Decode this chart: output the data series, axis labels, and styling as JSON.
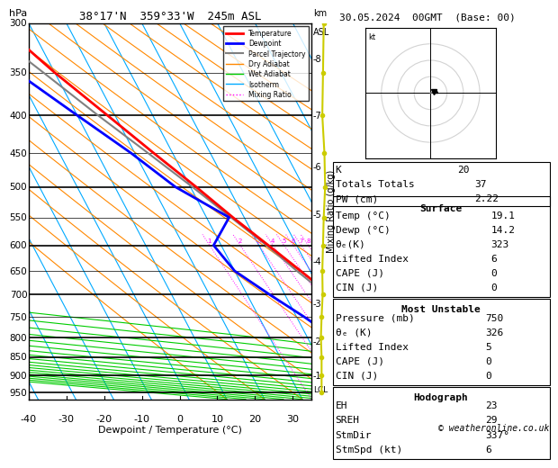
{
  "title_left": "38°17'N  359°33'W  245m ASL",
  "title_right": "30.05.2024  00GMT  (Base: 00)",
  "xlabel": "Dewpoint / Temperature (°C)",
  "temperature_profile": {
    "pressure": [
      950,
      900,
      850,
      800,
      750,
      700,
      650,
      600,
      550,
      500,
      450,
      400,
      350,
      300
    ],
    "temp": [
      19.1,
      16.5,
      13.5,
      9.5,
      6.0,
      2.0,
      -2.5,
      -7.5,
      -13.0,
      -18.5,
      -25.0,
      -32.0,
      -40.0,
      -48.0
    ]
  },
  "dewpoint_profile": {
    "pressure": [
      950,
      900,
      850,
      800,
      750,
      700,
      650,
      600,
      550,
      500,
      450,
      400,
      350,
      300
    ],
    "temp": [
      14.2,
      9.0,
      3.0,
      -3.0,
      -8.0,
      -14.0,
      -20.0,
      -22.0,
      -14.0,
      -24.0,
      -31.0,
      -40.0,
      -50.0,
      -58.0
    ]
  },
  "parcel_profile": {
    "pressure": [
      950,
      900,
      850,
      800,
      750,
      700,
      650,
      600,
      550,
      500,
      450,
      400,
      350,
      300
    ],
    "temp": [
      19.1,
      15.5,
      12.0,
      8.0,
      4.5,
      1.0,
      -3.5,
      -8.0,
      -13.5,
      -19.5,
      -26.5,
      -34.5,
      -43.0,
      -53.0
    ]
  },
  "lcl_pressure": 940,
  "colors": {
    "temperature": "#ff0000",
    "dewpoint": "#0000ff",
    "parcel": "#808080",
    "dry_adiabat": "#ff8800",
    "wet_adiabat": "#00cc00",
    "isotherm": "#00aaff",
    "mixing_ratio": "#ff00ff",
    "wind_profile": "#cccc00"
  },
  "legend_entries": [
    {
      "label": "Temperature",
      "color": "#ff0000",
      "lw": 2,
      "ls": "-"
    },
    {
      "label": "Dewpoint",
      "color": "#0000ff",
      "lw": 2,
      "ls": "-"
    },
    {
      "label": "Parcel Trajectory",
      "color": "#808080",
      "lw": 1.5,
      "ls": "-"
    },
    {
      "label": "Dry Adiabat",
      "color": "#ff8800",
      "lw": 1,
      "ls": "-"
    },
    {
      "label": "Wet Adiabat",
      "color": "#00cc00",
      "lw": 1,
      "ls": "-"
    },
    {
      "label": "Isotherm",
      "color": "#00aaff",
      "lw": 1,
      "ls": "-"
    },
    {
      "label": "Mixing Ratio",
      "color": "#ff00ff",
      "lw": 1,
      "ls": ":"
    }
  ],
  "stats": {
    "K": 20,
    "Totals_Totals": 37,
    "PW_cm": 2.22,
    "Surface": {
      "Temp_C": 19.1,
      "Dewp_C": 14.2,
      "theta_e_K": 323,
      "Lifted_Index": 6,
      "CAPE_J": 0,
      "CIN_J": 0
    },
    "Most_Unstable": {
      "Pressure_mb": 750,
      "theta_e_K": 326,
      "Lifted_Index": 5,
      "CAPE_J": 0,
      "CIN_J": 0
    },
    "Hodograph": {
      "EH": 23,
      "SREH": 29,
      "StmDir": "337°",
      "StmSpd_kt": 6
    }
  },
  "copyright": "© weatheronline.co.uk"
}
